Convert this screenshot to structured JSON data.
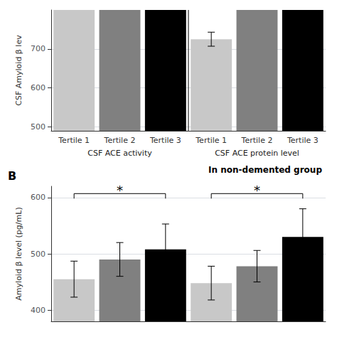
{
  "chart_data": [
    {
      "type": "bar",
      "ylabel": "CSF Amyloid β lev",
      "subtitle": "In non-demented group",
      "group_labels": [
        "CSF ACE activity",
        "CSF ACE protein level"
      ],
      "categories": [
        "Tertile 1",
        "Tertile 2",
        "Tertile 3",
        "Tertile 1",
        "Tertile 2",
        "Tertile 3"
      ],
      "values": [
        800,
        800,
        800,
        725,
        800,
        800
      ],
      "errors": [
        0,
        0,
        0,
        18,
        0,
        0
      ],
      "colors": [
        "#c8c8c8",
        "#808080",
        "#000000",
        "#c8c8c8",
        "#808080",
        "#000000"
      ],
      "ylim": [
        490,
        800
      ],
      "yticks": [
        500,
        600,
        700
      ],
      "grid": true
    },
    {
      "type": "bar",
      "title": "B",
      "ylabel": "Amyloid β level (pg/mL)",
      "categories": [
        null,
        null,
        null,
        null,
        null,
        null
      ],
      "values": [
        455,
        490,
        508,
        448,
        478,
        530
      ],
      "errors": [
        32,
        30,
        45,
        30,
        28,
        50
      ],
      "colors": [
        "#c8c8c8",
        "#808080",
        "#000000",
        "#c8c8c8",
        "#808080",
        "#000000"
      ],
      "ylim": [
        380,
        620
      ],
      "yticks": [
        400,
        500,
        600
      ],
      "grid": true,
      "tick_labels": "y",
      "brackets": [
        {
          "from": 0,
          "to": 2,
          "y": 607,
          "text": "*"
        },
        {
          "from": 3,
          "to": 5,
          "y": 607,
          "text": "*"
        }
      ]
    }
  ]
}
